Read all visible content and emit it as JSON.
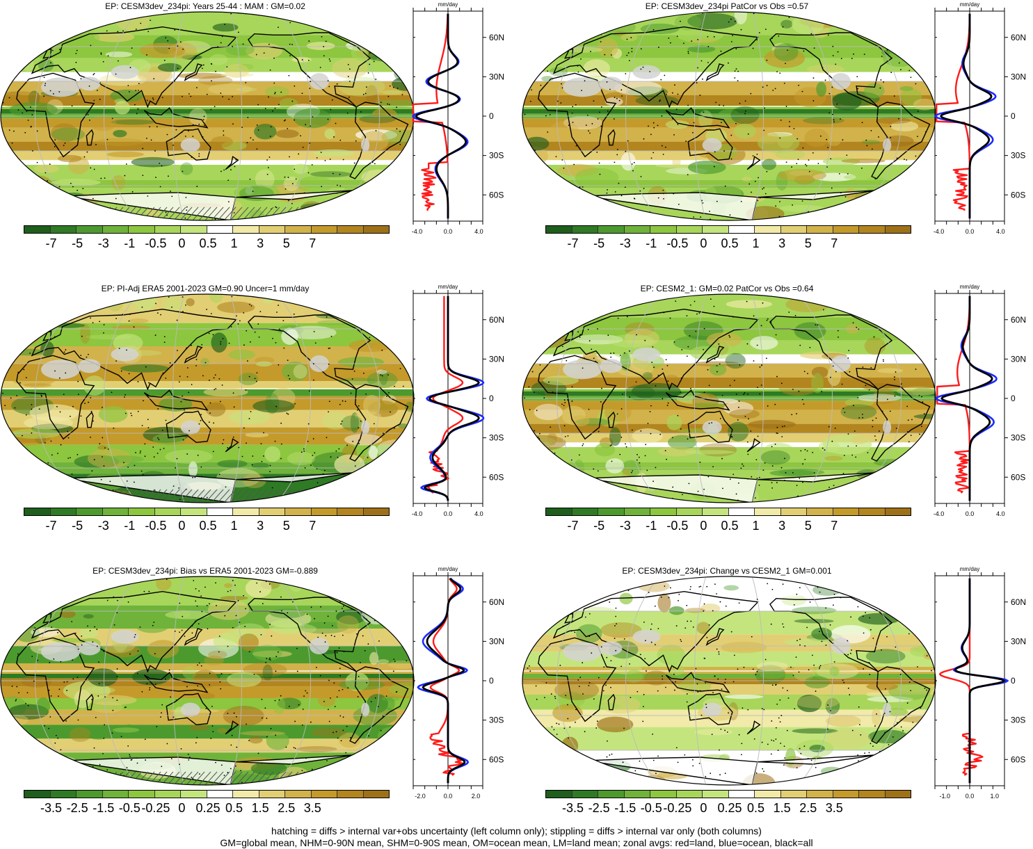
{
  "colors": {
    "palette": [
      "#1f5e1c",
      "#2f7a24",
      "#4c9a2e",
      "#6fb33a",
      "#8dc63f",
      "#a8d65a",
      "#c4e57e",
      "#ffffff",
      "#f1eaa8",
      "#e2cf74",
      "#d2b24a",
      "#c49a2a",
      "#b2851e",
      "#9e7118"
    ],
    "land_line": "#ff1a1a",
    "ocean_line": "#1a2bff",
    "all_line": "#000000",
    "missing": "#d3d3d3"
  },
  "colorbar_labels_full": [
    "-7",
    "-5",
    "-3",
    "-1",
    "-0.5",
    "0",
    "0.5",
    "1",
    "3",
    "5",
    "7"
  ],
  "colorbar_labels_diff": [
    "-3.5",
    "-2.5",
    "-1.5",
    "-0.5",
    "-0.25",
    "0",
    "0.25",
    "0.5",
    "1.5",
    "2.5",
    "3.5"
  ],
  "lat_labels": [
    "60N",
    "30N",
    "0",
    "30S",
    "60S"
  ],
  "panels": [
    {
      "title": "EP: CESM3dev_234pi: Years 25-44 : MAM : GM=0.02",
      "unit": "mm/day",
      "xticks": [
        "-4.0",
        "0.0",
        "4.0"
      ],
      "hatch": true,
      "stipple": true
    },
    {
      "title": "EP: CESM3dev_234pi PatCor vs Obs =0.57",
      "unit": "mm/day",
      "xticks": [
        "-4.0",
        "0.0",
        "4.0"
      ],
      "hatch": false,
      "stipple": true
    },
    {
      "title": "EP: PI-Adj ERA5 2001-2023 GM=0.90 Uncer=1 mm/day",
      "unit": "mm/day",
      "xticks": [
        "-4.0",
        "0.0",
        "4.0"
      ],
      "hatch": true,
      "stipple": true
    },
    {
      "title": "EP: CESM2_1: GM=0.02 PatCor vs Obs =0.64",
      "unit": "mm/day",
      "xticks": [
        "-4.0",
        "0.0",
        "4.0"
      ],
      "hatch": false,
      "stipple": true
    },
    {
      "title": "EP: CESM3dev_234pi: Bias vs ERA5 2001-2023 GM=-0.889",
      "unit": "mm/day",
      "xticks": [
        "-2.0",
        "0.0",
        "2.0"
      ],
      "hatch": true,
      "stipple": true
    },
    {
      "title": "EP: CESM3dev_234pi: Change vs CESM2_1 GM=0.001",
      "unit": "mm/day",
      "xticks": [
        "-1.0",
        "0.0",
        "1.0"
      ],
      "hatch": false,
      "stipple": true
    }
  ],
  "footer": {
    "line1": "hatching = diffs > internal var+obs uncertainty (left column only); stippling = diffs > internal var only (both columns)",
    "line2": "GM=global mean, NHM=0-90N mean, SHM=0-90S mean, OM=ocean mean, LM=land mean; zonal avgs: red=land, blue=ocean, black=all"
  }
}
